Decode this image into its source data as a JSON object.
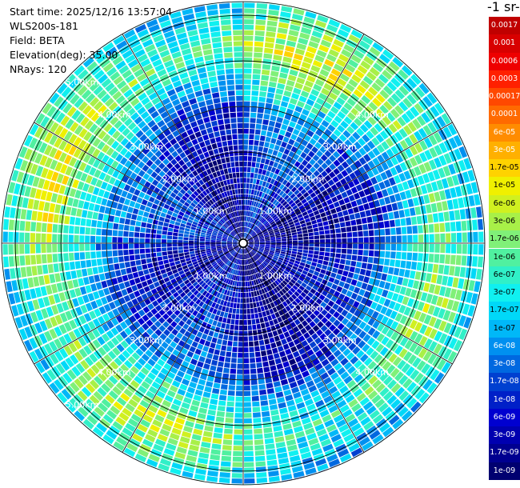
{
  "header": {
    "start_time": "Start time: 2025/12/16 13:57:04",
    "instrument": "WLS200s-181",
    "field": "Field: BETA",
    "elevation": "Elevation(deg): 35.00",
    "nrays": "NRays: 120"
  },
  "colorbar": {
    "unit_label": "-1 sr-",
    "labels": [
      "0.0017",
      "0.001",
      "0.0006",
      "0.0003",
      "0.00017",
      "0.0001",
      "6e-05",
      "3e-05",
      "1.7e-05",
      "1e-05",
      "6e-06",
      "3e-06",
      "1.7e-06",
      "1e-06",
      "6e-07",
      "3e-07",
      "1.7e-07",
      "1e-07",
      "6e-08",
      "3e-08",
      "1.7e-08",
      "1e-08",
      "6e-09",
      "3e-09",
      "1.7e-09",
      "1e-09"
    ],
    "colors": [
      "#c00000",
      "#d80000",
      "#ee0000",
      "#ff2000",
      "#ff4800",
      "#ff6a00",
      "#ff8c00",
      "#ffb000",
      "#ffd200",
      "#f0f000",
      "#d0f020",
      "#a8f048",
      "#80f078",
      "#50f0a0",
      "#30f0c8",
      "#10f0f0",
      "#00d8f8",
      "#00b8f8",
      "#0090f0",
      "#0068e0",
      "#0040d0",
      "#0020c8",
      "#0000d0",
      "#0000b0",
      "#000090",
      "#000070"
    ]
  },
  "chart_data": {
    "type": "heatmap",
    "projection": "polar PPI",
    "field": "BETA",
    "elevation_deg": 35.0,
    "n_rays": 120,
    "max_range_km": 5.3,
    "range_ring_labels": [
      "1.00km",
      "2.00km",
      "3.00km",
      "4.00km",
      "5.00km"
    ],
    "range_rings_km": [
      1,
      2,
      3,
      4,
      5
    ],
    "value_scale": "log",
    "value_range": [
      1e-09,
      0.0017
    ],
    "radial_profile_log10": [
      {
        "range_km": 0.0,
        "log10_beta": -8.3
      },
      {
        "range_km": 1.0,
        "log10_beta": -8.3
      },
      {
        "range_km": 2.0,
        "log10_beta": -8.1
      },
      {
        "range_km": 2.9,
        "log10_beta": -7.7
      },
      {
        "range_km": 3.6,
        "log10_beta": -6.6
      },
      {
        "range_km": 4.3,
        "log10_beta": -5.7
      },
      {
        "range_km": 4.9,
        "log10_beta": -6.3
      },
      {
        "range_km": 5.3,
        "log10_beta": -6.8
      }
    ]
  }
}
